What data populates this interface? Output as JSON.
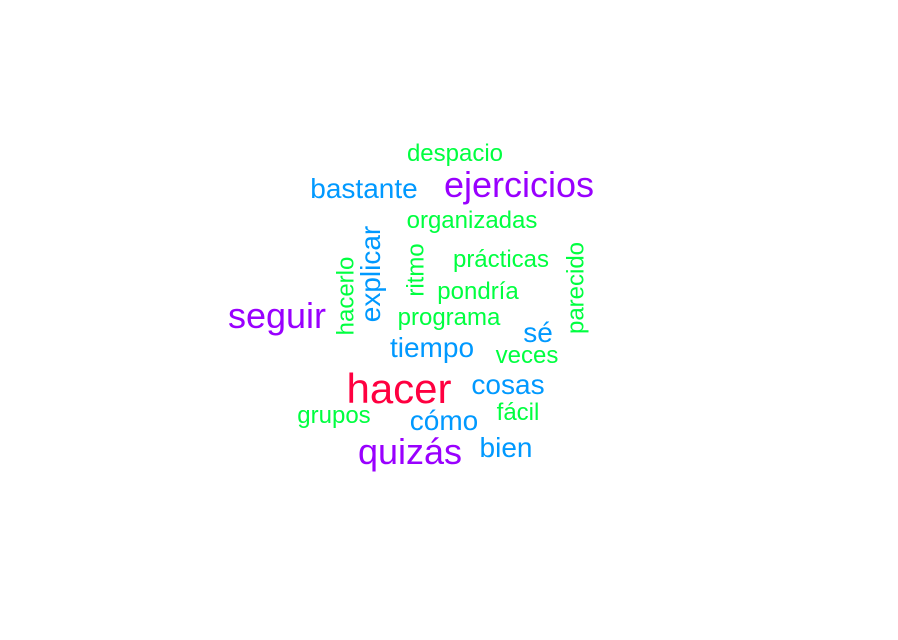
{
  "palette": {
    "high": "#ff0040",
    "upper": "#9900ff",
    "middle": "#0099ff",
    "low": "#00ff40"
  },
  "words": [
    {
      "text": "hacer",
      "tier": "high"
    },
    {
      "text": "ejercicios",
      "tier": "upper"
    },
    {
      "text": "seguir",
      "tier": "upper"
    },
    {
      "text": "quizás",
      "tier": "upper"
    },
    {
      "text": "bastante",
      "tier": "middle"
    },
    {
      "text": "explicar",
      "tier": "middle"
    },
    {
      "text": "tiempo",
      "tier": "middle"
    },
    {
      "text": "sé",
      "tier": "middle"
    },
    {
      "text": "cosas",
      "tier": "middle"
    },
    {
      "text": "cómo",
      "tier": "middle"
    },
    {
      "text": "bien",
      "tier": "middle"
    },
    {
      "text": "despacio",
      "tier": "low"
    },
    {
      "text": "organizadas",
      "tier": "low"
    },
    {
      "text": "prácticas",
      "tier": "low"
    },
    {
      "text": "hacerlo",
      "tier": "low"
    },
    {
      "text": "ritmo",
      "tier": "low"
    },
    {
      "text": "pondría",
      "tier": "low"
    },
    {
      "text": "parecido",
      "tier": "low"
    },
    {
      "text": "programa",
      "tier": "low"
    },
    {
      "text": "veces",
      "tier": "low"
    },
    {
      "text": "grupos",
      "tier": "low"
    },
    {
      "text": "fácil",
      "tier": "low"
    }
  ]
}
